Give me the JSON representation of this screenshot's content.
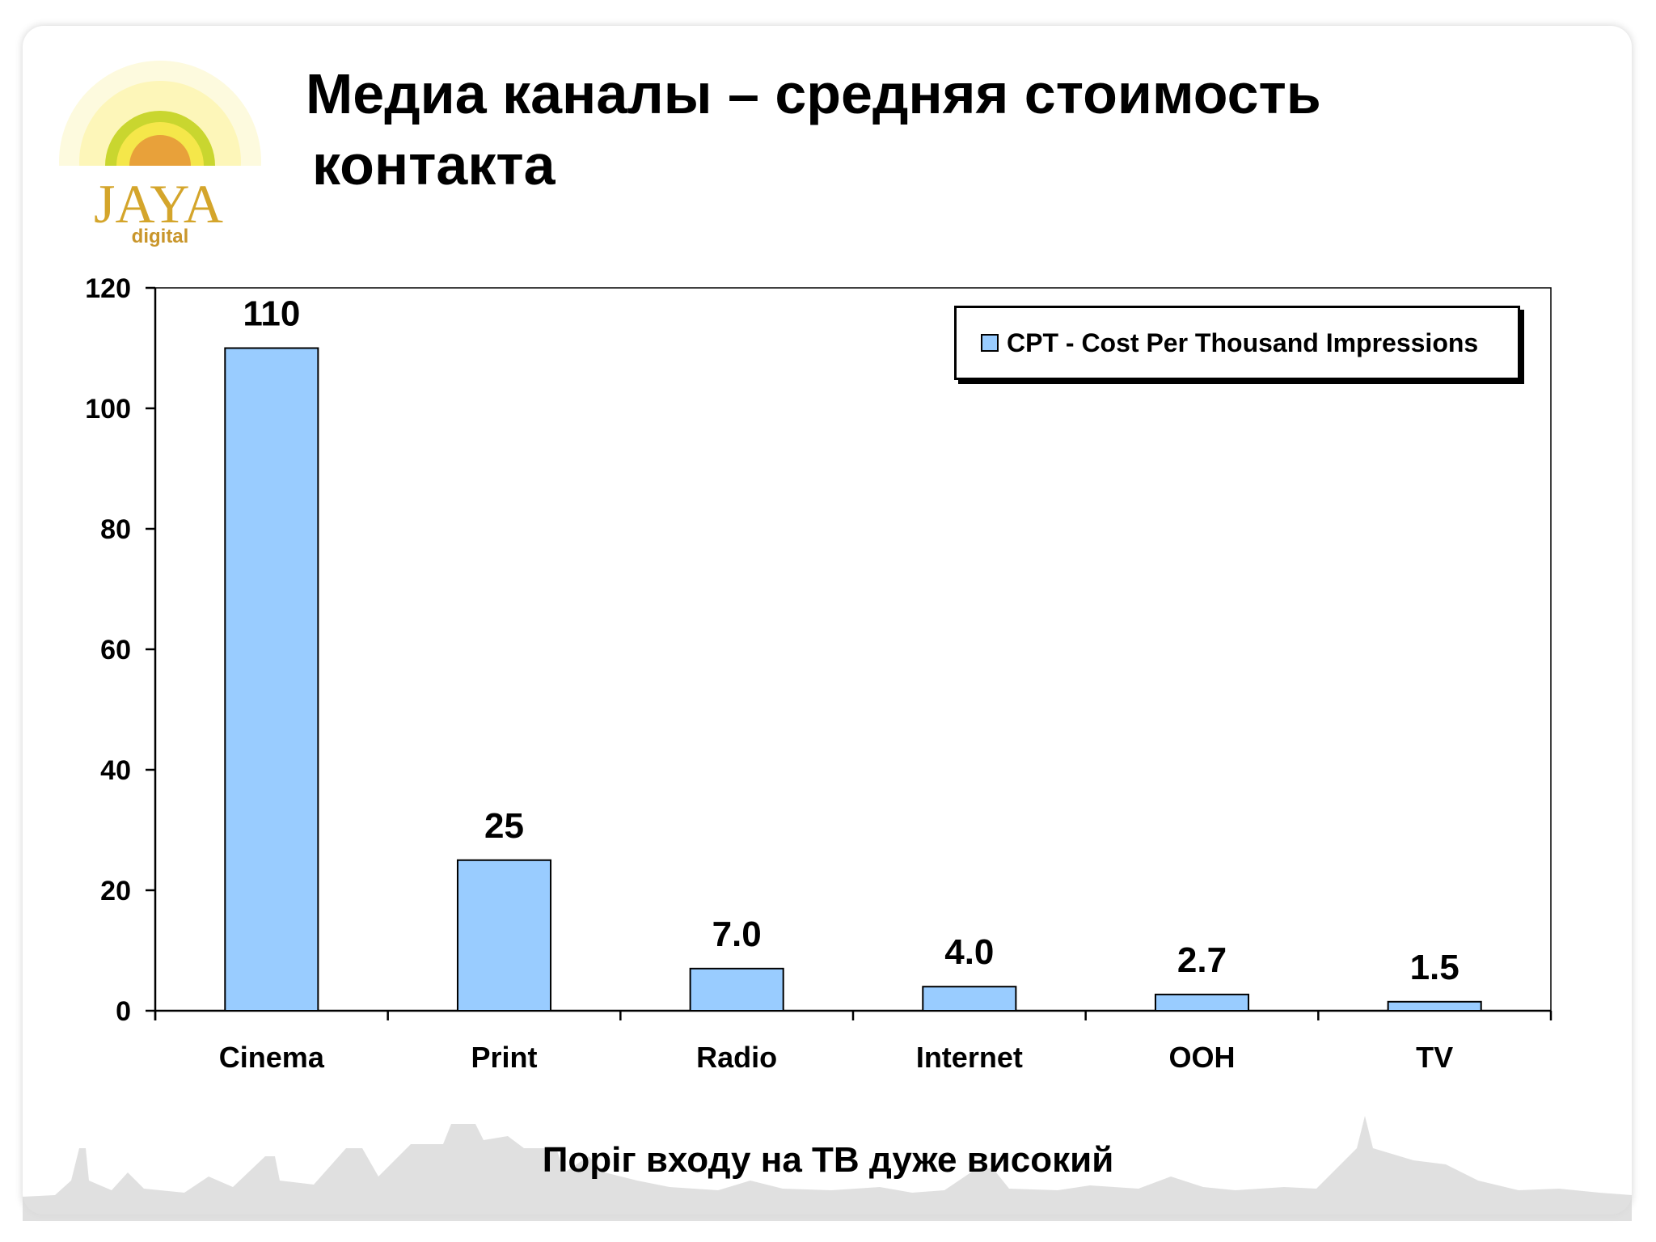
{
  "slide": {
    "title_line1": "Медиа каналы – средняя стоимость",
    "title_line2": "контакта",
    "footer": "Поріг входу на ТВ дуже високий"
  },
  "logo": {
    "wordmark": "JAYA",
    "subtext": "digital"
  },
  "colors": {
    "bar_fill": "#99ccff",
    "bar_stroke": "#000000",
    "axis": "#000000",
    "logo_gold": "#d4a52b",
    "logo_orange": "#e8a13a",
    "logo_yellow": "#f5e74a"
  },
  "chart_data": {
    "type": "bar",
    "categories": [
      "Cinema",
      "Print",
      "Radio",
      "Internet",
      "OOH",
      "TV"
    ],
    "series": [
      {
        "name": "CPT - Cost Per Thousand Impressions",
        "values": [
          110,
          25,
          7.0,
          4.0,
          2.7,
          1.5
        ],
        "labels": [
          "110",
          "25",
          "7.0",
          "4.0",
          "2.7",
          "1.5"
        ]
      }
    ],
    "ylim": [
      0,
      120
    ],
    "yticks": [
      0,
      20,
      40,
      60,
      80,
      100,
      120
    ],
    "xlabel": "",
    "ylabel": "",
    "grid": false,
    "legend_position": "top-right"
  }
}
